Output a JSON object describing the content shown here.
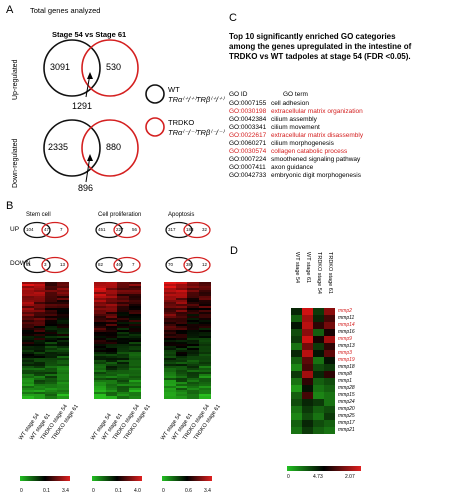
{
  "panels": {
    "a": "A",
    "b": "B",
    "c": "C",
    "d": "D"
  },
  "panel_a": {
    "title": "Total genes analyzed",
    "comparison": "Stage 54 vs Stage 61",
    "up_label": "Up-regulated",
    "down_label": "Down-regulated",
    "up": {
      "left": "3091",
      "right": "530",
      "overlap": "1291"
    },
    "down": {
      "left": "2335",
      "right": "880",
      "overlap": "896"
    },
    "legend_wt": "WT",
    "legend_wt_sub": "TRα⁽⁺/⁺⁾TRβ⁽⁺/⁺⁾",
    "legend_ko": "TRDKO",
    "legend_ko_sub": "TRα⁽⁻/⁻⁾TRβ⁽⁻/⁻⁾",
    "colors": {
      "wt": "#111111",
      "ko": "#d42020"
    }
  },
  "panel_b": {
    "row_up": "UP",
    "row_down": "DOWN",
    "groups": [
      {
        "title": "Stem cell",
        "up": [
          "104",
          "47",
          "7"
        ],
        "down": [
          "31",
          "3",
          "13"
        ],
        "cols": [
          "WT stage 54",
          "WT stage 61",
          "TRDKO stage 54",
          "TRDKO stage 61"
        ],
        "scale": [
          "0",
          "0.1",
          "3.4"
        ]
      },
      {
        "title": "Cell proliferation",
        "up": [
          "451",
          "227",
          "56"
        ],
        "down": [
          "82",
          "46",
          "7"
        ],
        "cols": [
          "WT stage 54",
          "WT stage 61",
          "TRDKO stage 54",
          "TRDKO stage 61"
        ],
        "scale": [
          "0",
          "0.1",
          "4.0"
        ]
      },
      {
        "title": "Apoptosis",
        "up": [
          "317",
          "188",
          "32"
        ],
        "down": [
          "70",
          "38",
          "12"
        ],
        "cols": [
          "WT stage 54",
          "WT stage 61",
          "TRDKO stage 54",
          "TRDKO stage 61"
        ],
        "scale": [
          "0",
          "0.6",
          "3.4"
        ]
      }
    ]
  },
  "panel_c": {
    "title": "Top 10 significantly enriched GO categories among the genes upregulated in the intestine of TRDKO vs WT tadpoles at stage 54 (FDR <0.05).",
    "col_id": "GO ID",
    "col_term": "GO term",
    "rows": [
      {
        "id": "GO:0007155",
        "term": "cell adhesion",
        "highlight": false
      },
      {
        "id": "GO:0030198",
        "term": "extracellular matrix organization",
        "highlight": true
      },
      {
        "id": "GO:0042384",
        "term": "cilium assembly",
        "highlight": false
      },
      {
        "id": "GO:0003341",
        "term": "cilium movement",
        "highlight": false
      },
      {
        "id": "GO:0022617",
        "term": "extracellular matrix disassembly",
        "highlight": true
      },
      {
        "id": "GO:0060271",
        "term": "cilium morphogenesis",
        "highlight": false
      },
      {
        "id": "GO:0030574",
        "term": "collagen catabolic process",
        "highlight": true
      },
      {
        "id": "GO:0007224",
        "term": "smoothened signaling pathway",
        "highlight": false
      },
      {
        "id": "GO:0007411",
        "term": "axon guidance",
        "highlight": false
      },
      {
        "id": "GO:0042733",
        "term": "embryonic digit morphogenesis",
        "highlight": false
      }
    ]
  },
  "panel_d": {
    "cols": [
      "WT stage 54",
      "WT stage 61",
      "TRDKO stage 54",
      "TRDKO stage 61"
    ],
    "genes": [
      {
        "name": "mmp2",
        "red": true
      },
      {
        "name": "mmp11",
        "red": false
      },
      {
        "name": "mmp14",
        "red": true
      },
      {
        "name": "mmp16",
        "red": false
      },
      {
        "name": "mmp9",
        "red": true
      },
      {
        "name": "mmp13",
        "red": false
      },
      {
        "name": "mmp3",
        "red": true
      },
      {
        "name": "mmp19",
        "red": true
      },
      {
        "name": "mmp18",
        "red": false
      },
      {
        "name": "mmp8",
        "red": false
      },
      {
        "name": "mmp1",
        "red": false
      },
      {
        "name": "mmp28",
        "red": false
      },
      {
        "name": "mmp15",
        "red": false
      },
      {
        "name": "mmp24",
        "red": false
      },
      {
        "name": "mmp20",
        "red": false
      },
      {
        "name": "mmp25",
        "red": false
      },
      {
        "name": "mmp17",
        "red": false
      },
      {
        "name": "mmp21",
        "red": false
      }
    ],
    "scale": [
      "0",
      "4.73",
      "2.07"
    ]
  }
}
